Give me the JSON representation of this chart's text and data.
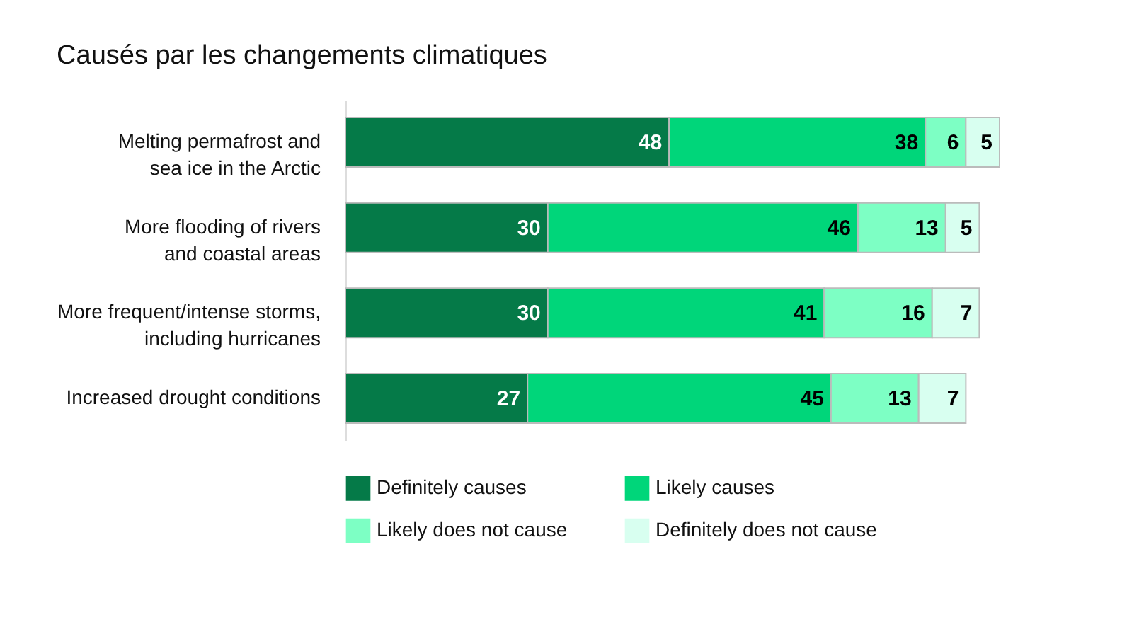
{
  "chart_data": {
    "type": "bar",
    "orientation": "horizontal",
    "stacked": true,
    "data_labels": true,
    "legend": "bottom",
    "title": "Causés par les changements climatiques",
    "categories": [
      "Melting permafrost and\nsea ice in the Arctic",
      "More flooding of rivers\nand coastal areas",
      "More frequent/intense storms,\nincluding hurricanes",
      "Increased drought conditions"
    ],
    "series": [
      {
        "name": "Definitely causes",
        "color": "#057a48",
        "values": [
          48,
          30,
          30,
          27
        ]
      },
      {
        "name": "Likely causes",
        "color": "#00d67a",
        "values": [
          38,
          46,
          41,
          45
        ]
      },
      {
        "name": "Likely does not cause",
        "color": "#7dffc4",
        "values": [
          6,
          13,
          16,
          13
        ]
      },
      {
        "name": "Definitely does not cause",
        "color": "#d8fff0",
        "values": [
          5,
          5,
          7,
          7
        ]
      }
    ]
  }
}
